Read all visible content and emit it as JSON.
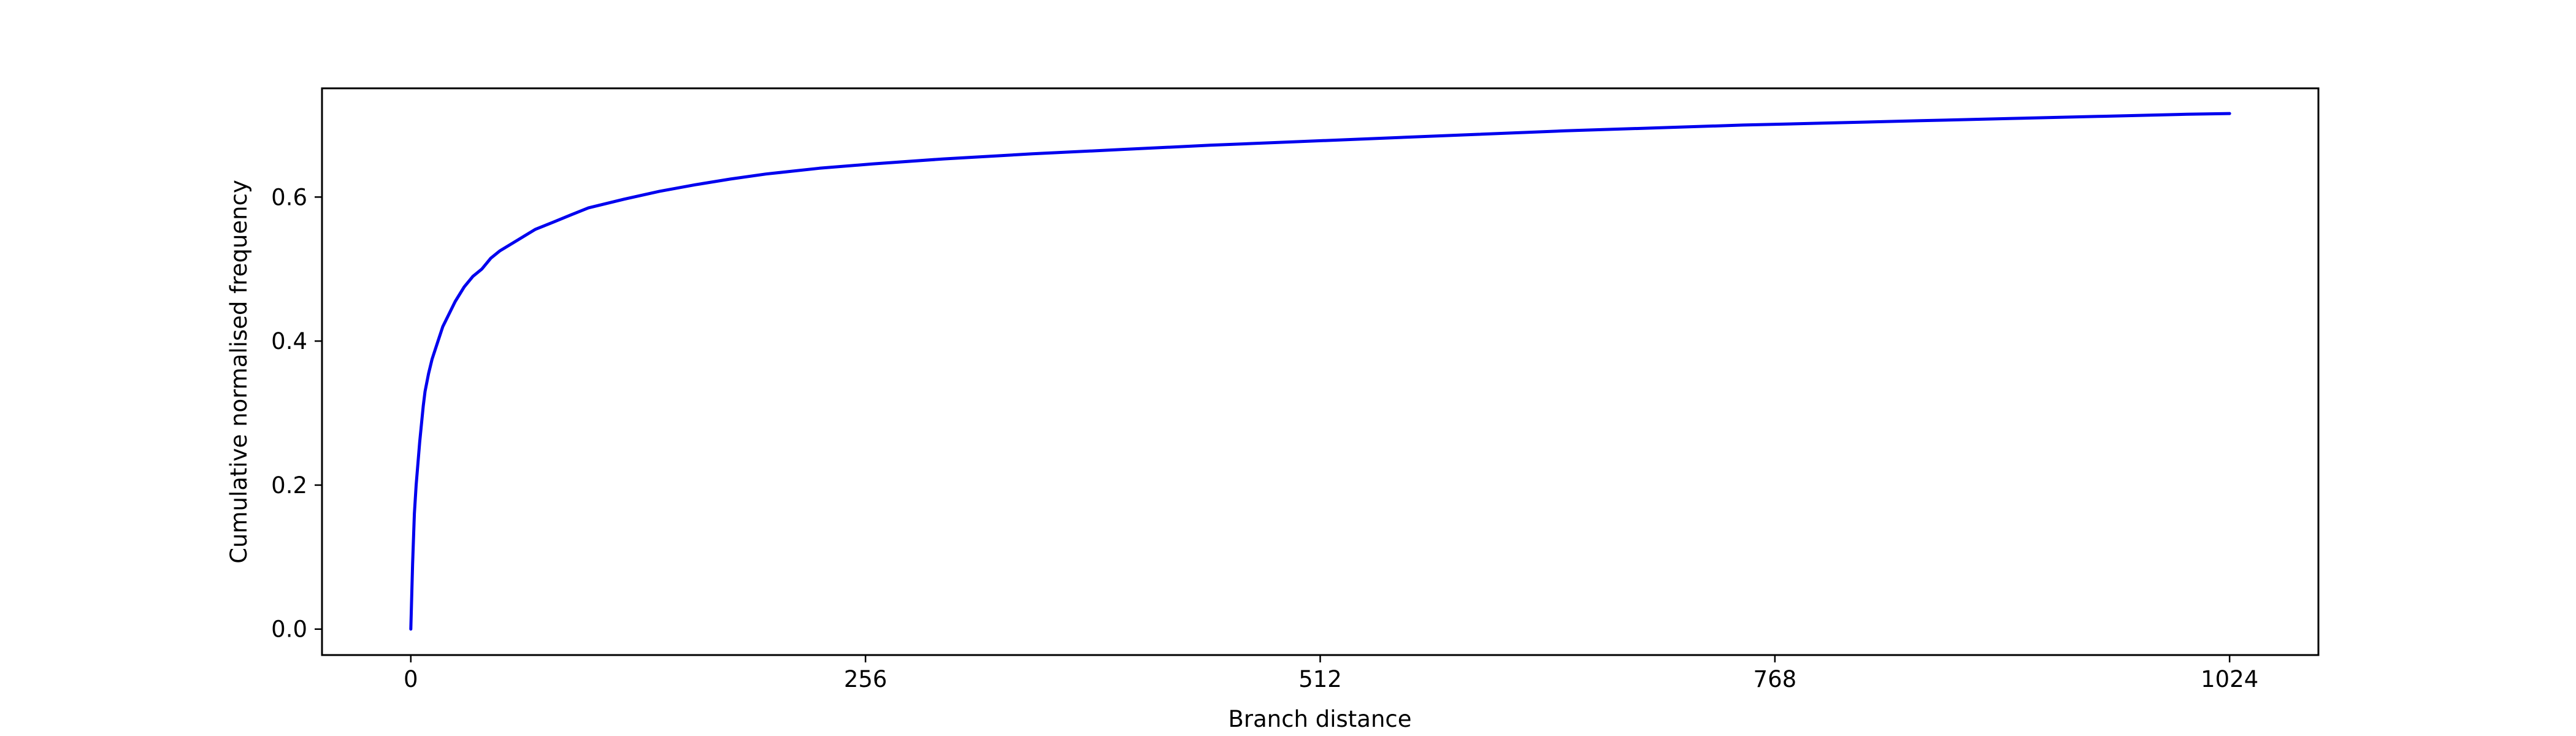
{
  "chart_data": {
    "type": "line",
    "title": "",
    "xlabel": "Branch distance",
    "ylabel": "Cumulative normalised frequency",
    "xlim": [
      -50,
      1074
    ],
    "ylim": [
      -0.036,
      0.751
    ],
    "xticks": [
      0,
      256,
      512,
      768,
      1024
    ],
    "yticks": [
      0.0,
      0.2,
      0.4,
      0.6
    ],
    "ytick_labels": [
      "0.0",
      "0.2",
      "0.4",
      "0.6"
    ],
    "grid": false,
    "legend": "none",
    "series": [
      {
        "color": "#0000ee",
        "x": [
          0,
          1,
          2,
          3,
          4,
          5,
          6,
          7,
          8,
          10,
          12,
          14,
          16,
          18,
          20,
          25,
          30,
          35,
          40,
          45,
          50,
          60,
          70,
          80,
          90,
          100,
          120,
          140,
          160,
          180,
          200,
          230,
          260,
          300,
          350,
          400,
          450,
          500,
          550,
          600,
          650,
          700,
          750,
          800,
          850,
          900,
          950,
          1000,
          1024
        ],
        "y": [
          0.0,
          0.09,
          0.16,
          0.2,
          0.23,
          0.26,
          0.285,
          0.31,
          0.33,
          0.355,
          0.375,
          0.39,
          0.405,
          0.42,
          0.43,
          0.455,
          0.475,
          0.49,
          0.5,
          0.515,
          0.525,
          0.54,
          0.555,
          0.565,
          0.575,
          0.585,
          0.597,
          0.608,
          0.617,
          0.625,
          0.632,
          0.64,
          0.646,
          0.653,
          0.66,
          0.666,
          0.672,
          0.677,
          0.682,
          0.687,
          0.692,
          0.696,
          0.7,
          0.703,
          0.706,
          0.709,
          0.712,
          0.715,
          0.716
        ]
      }
    ]
  }
}
